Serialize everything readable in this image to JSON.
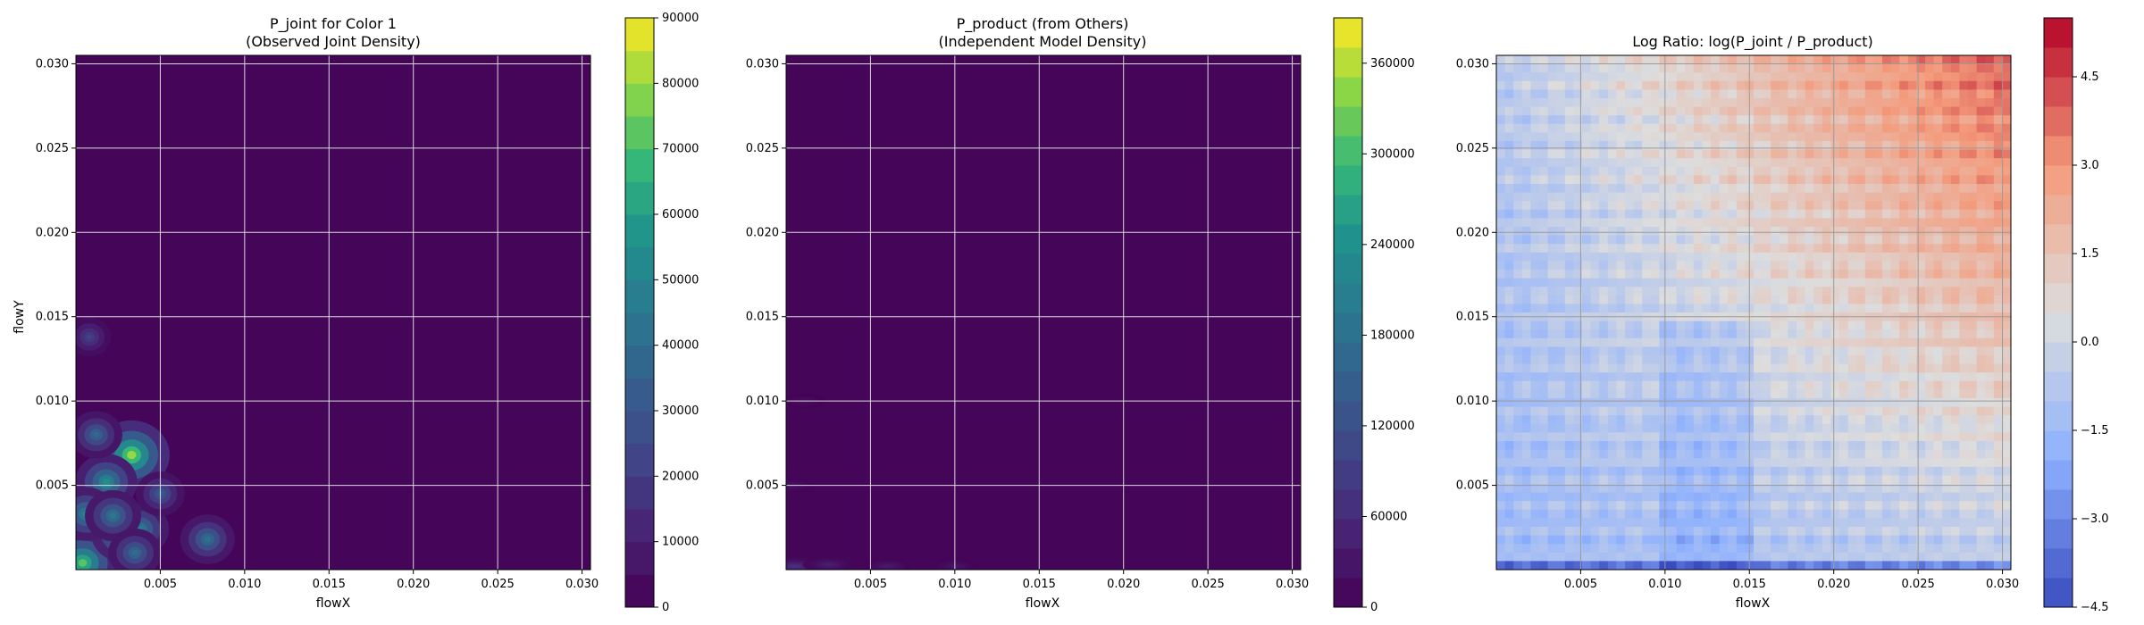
{
  "chart_data": [
    {
      "type": "heatmap",
      "title_line1": "P_joint for Color 1",
      "title_line2": "(Observed Joint Density)",
      "xlabel": "flowX",
      "ylabel": "flowY",
      "xlim": [
        0.0,
        0.0305
      ],
      "ylim": [
        0.0,
        0.0305
      ],
      "xticks": [
        0.005,
        0.01,
        0.015,
        0.02,
        0.025,
        0.03
      ],
      "xtick_labels": [
        "0.005",
        "0.010",
        "0.015",
        "0.020",
        "0.025",
        "0.030"
      ],
      "yticks": [
        0.005,
        0.01,
        0.015,
        0.02,
        0.025,
        0.03
      ],
      "ytick_labels": [
        "0.005",
        "0.010",
        "0.015",
        "0.020",
        "0.025",
        "0.030"
      ],
      "colormap": "viridis",
      "grid": true,
      "colorbar": {
        "min": 0,
        "max": 90000,
        "levels": 18,
        "ticks": [
          0,
          10000,
          20000,
          30000,
          40000,
          50000,
          60000,
          70000,
          80000,
          90000
        ],
        "tick_labels": [
          "0",
          "10000",
          "20000",
          "30000",
          "40000",
          "50000",
          "60000",
          "70000",
          "80000",
          "90000"
        ]
      },
      "hotspots": [
        {
          "x": 0.0033,
          "y": 0.0068,
          "value": 80000
        },
        {
          "x": 0.0004,
          "y": 0.0004,
          "value": 72000
        },
        {
          "x": 0.0028,
          "y": 0.0022,
          "value": 60000
        },
        {
          "x": 0.0018,
          "y": 0.0052,
          "value": 55000
        },
        {
          "x": 0.0006,
          "y": 0.0033,
          "value": 50000
        },
        {
          "x": 0.0038,
          "y": 0.0024,
          "value": 48000
        },
        {
          "x": 0.0022,
          "y": 0.0032,
          "value": 45000
        },
        {
          "x": 0.0078,
          "y": 0.0018,
          "value": 42000
        },
        {
          "x": 0.0012,
          "y": 0.008,
          "value": 38000
        },
        {
          "x": 0.005,
          "y": 0.0045,
          "value": 32000
        },
        {
          "x": 0.0035,
          "y": 0.001,
          "value": 40000
        },
        {
          "x": 0.0008,
          "y": 0.0138,
          "value": 22000
        }
      ]
    },
    {
      "type": "heatmap",
      "title_line1": "P_product (from Others)",
      "title_line2": "(Independent Model Density)",
      "xlabel": "flowX",
      "ylabel": "",
      "xlim": [
        0.0,
        0.0305
      ],
      "ylim": [
        0.0,
        0.0305
      ],
      "xticks": [
        0.005,
        0.01,
        0.015,
        0.02,
        0.025,
        0.03
      ],
      "xtick_labels": [
        "0.005",
        "0.010",
        "0.015",
        "0.020",
        "0.025",
        "0.030"
      ],
      "yticks": [
        0.005,
        0.01,
        0.015,
        0.02,
        0.025,
        0.03
      ],
      "ytick_labels": [
        "0.005",
        "0.010",
        "0.015",
        "0.020",
        "0.025",
        "0.030"
      ],
      "colormap": "viridis",
      "grid": true,
      "colorbar": {
        "min": 0,
        "max": 390000,
        "levels": 20,
        "ticks": [
          0,
          60000,
          120000,
          180000,
          240000,
          300000,
          360000
        ],
        "tick_labels": [
          "0",
          "60000",
          "120000",
          "180000",
          "240000",
          "300000",
          "360000"
        ]
      },
      "hotspots": [
        {
          "x": 0.0005,
          "y": 0.0002,
          "value": 70000
        },
        {
          "x": 0.0025,
          "y": 0.0003,
          "value": 45000
        },
        {
          "x": 0.006,
          "y": 0.0002,
          "value": 35000
        },
        {
          "x": 0.01,
          "y": 0.0002,
          "value": 30000
        },
        {
          "x": 0.0003,
          "y": 0.005,
          "value": 25000
        },
        {
          "x": 0.001,
          "y": 0.01,
          "value": 20000
        }
      ]
    },
    {
      "type": "heatmap",
      "title_line1": "Log Ratio: log(P_joint / P_product)",
      "title_line2": "",
      "xlabel": "flowX",
      "ylabel": "",
      "xlim": [
        0.0,
        0.0305
      ],
      "ylim": [
        0.0,
        0.0305
      ],
      "xticks": [
        0.005,
        0.01,
        0.015,
        0.02,
        0.025,
        0.03
      ],
      "xtick_labels": [
        "0.005",
        "0.010",
        "0.015",
        "0.020",
        "0.025",
        "0.030"
      ],
      "yticks": [
        0.005,
        0.01,
        0.015,
        0.02,
        0.025,
        0.03
      ],
      "ytick_labels": [
        "0.005",
        "0.010",
        "0.015",
        "0.020",
        "0.025",
        "0.030"
      ],
      "colormap": "coolwarm",
      "grid": true,
      "colorbar": {
        "min": -4.5,
        "max": 5.5,
        "levels": 20,
        "ticks": [
          -4.5,
          -3.0,
          -1.5,
          0.0,
          1.5,
          3.0,
          4.5
        ],
        "tick_labels": [
          "−4.5",
          "−3.0",
          "−1.5",
          "0.0",
          "1.5",
          "3.0",
          "4.5"
        ]
      }
    }
  ]
}
